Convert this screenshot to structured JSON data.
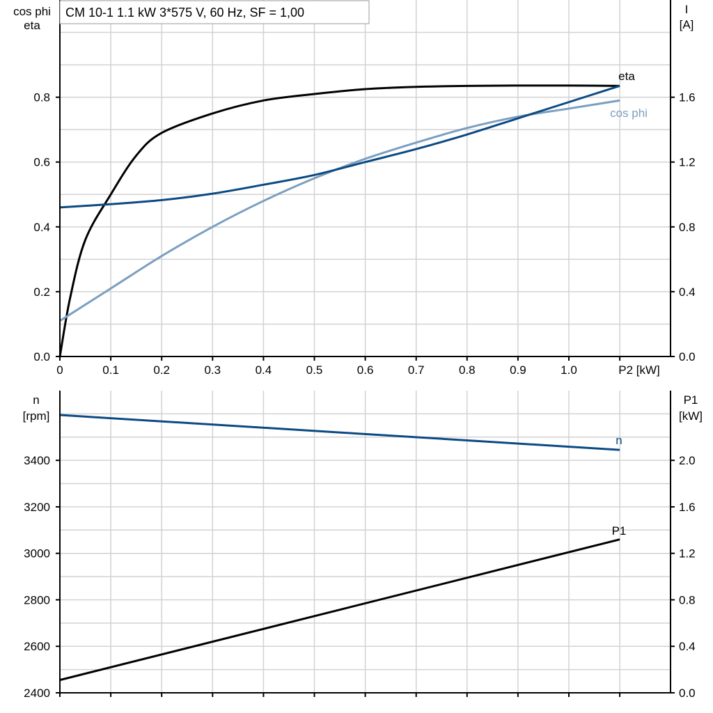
{
  "title": "CM 10-1   1.1 kW   3*575 V, 60 Hz, SF = 1,00",
  "colors": {
    "eta": "#000000",
    "current": "#0a4a82",
    "cos_phi": "#7b9fc0",
    "n": "#0a4a82",
    "P1": "#000000",
    "grid": "#d2d2d2"
  },
  "chart_data": [
    {
      "type": "line",
      "xlabel": "P2 [kW]",
      "ylabel_left": [
        "cos phi",
        "eta"
      ],
      "ylabel_right": [
        "I",
        "[A]"
      ],
      "xlim": [
        0,
        1.2
      ],
      "ylim_left": [
        0,
        1.1
      ],
      "ylim_right": [
        0,
        2.2
      ],
      "grid": true,
      "x_ticks": [
        "0",
        "0.1",
        "0.2",
        "0.3",
        "0.4",
        "0.5",
        "0.6",
        "0.7",
        "0.8",
        "0.9",
        "1.0"
      ],
      "y_ticks_left": [
        "0.0",
        "0.2",
        "0.4",
        "0.6",
        "0.8"
      ],
      "y_ticks_right": [
        "0.0",
        "0.4",
        "0.8",
        "1.2",
        "1.6"
      ],
      "series": [
        {
          "name": "eta",
          "axis": "left",
          "x": [
            0,
            0.02,
            0.05,
            0.1,
            0.15,
            0.2,
            0.3,
            0.4,
            0.5,
            0.6,
            0.7,
            0.8,
            0.9,
            1.0,
            1.1
          ],
          "y": [
            0,
            0.18,
            0.36,
            0.5,
            0.62,
            0.69,
            0.75,
            0.79,
            0.81,
            0.825,
            0.832,
            0.835,
            0.836,
            0.836,
            0.835
          ]
        },
        {
          "name": "cos phi",
          "axis": "left",
          "x": [
            0,
            0.1,
            0.2,
            0.3,
            0.4,
            0.5,
            0.6,
            0.7,
            0.8,
            0.9,
            1.0,
            1.1
          ],
          "y": [
            0.11,
            0.21,
            0.31,
            0.4,
            0.48,
            0.55,
            0.61,
            0.66,
            0.705,
            0.74,
            0.765,
            0.79
          ]
        },
        {
          "axis": "right",
          "x": [
            0,
            0.1,
            0.2,
            0.3,
            0.4,
            0.5,
            0.6,
            0.7,
            0.8,
            0.9,
            1.0,
            1.1
          ],
          "y": [
            0.92,
            0.94,
            0.965,
            1.005,
            1.06,
            1.12,
            1.2,
            1.28,
            1.37,
            1.47,
            1.57,
            1.67
          ]
        }
      ]
    },
    {
      "type": "line",
      "ylabel_left": [
        "n",
        "[rpm]"
      ],
      "ylabel_right": [
        "P1",
        "[kW]"
      ],
      "xlim": [
        0,
        1.2
      ],
      "ylim_left": [
        2400,
        3700
      ],
      "ylim_right": [
        0,
        2.6
      ],
      "grid": true,
      "y_ticks_left": [
        "2400",
        "2600",
        "2800",
        "3000",
        "3200",
        "3400"
      ],
      "y_ticks_right": [
        "0.0",
        "0.4",
        "0.8",
        "1.2",
        "1.6",
        "2.0"
      ],
      "series": [
        {
          "name": "n",
          "axis": "left",
          "x": [
            0,
            1.1
          ],
          "y": [
            3595,
            3445
          ]
        },
        {
          "name": "P1",
          "axis": "right",
          "x": [
            0,
            1.1
          ],
          "y": [
            0.11,
            1.32
          ]
        }
      ]
    }
  ]
}
